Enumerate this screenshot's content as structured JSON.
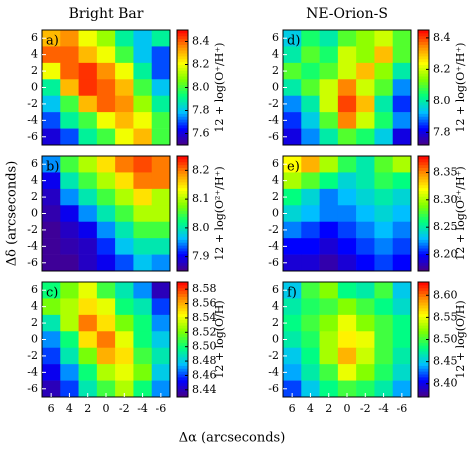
{
  "chart_data": [
    {
      "type": "heatmap",
      "panel_label": "a)",
      "title": "Bright Bar",
      "colorbar_label": "12 + log(O⁺/H⁺)",
      "xlim": [
        7,
        -7
      ],
      "ylim": [
        -7,
        7
      ],
      "yticks": [
        -6,
        -4,
        -2,
        0,
        2,
        4,
        6
      ],
      "clim": [
        7.5,
        8.5
      ],
      "cticks": [
        7.6,
        7.8,
        {
          "value": 8,
          "label": "8.0"
        },
        8.2,
        8.4
      ],
      "colormap": [
        "#4b0082",
        "#0000ff",
        "#00bfff",
        "#00ff7f",
        "#7fff00",
        "#ffff00",
        "#ff8c00",
        "#ff0000"
      ],
      "values": [
        [
          8.3,
          8.35,
          8.2,
          8.1,
          7.9,
          7.8,
          7.9
        ],
        [
          8.4,
          8.4,
          8.3,
          8.2,
          8.0,
          7.8,
          7.7
        ],
        [
          8.2,
          8.4,
          8.45,
          8.35,
          8.2,
          7.9,
          7.7
        ],
        [
          7.9,
          8.3,
          8.45,
          8.4,
          8.3,
          8.0,
          7.8
        ],
        [
          7.8,
          8.0,
          8.3,
          8.4,
          8.35,
          8.1,
          7.9
        ],
        [
          7.7,
          7.9,
          8.0,
          8.2,
          8.3,
          8.2,
          8.0
        ],
        [
          7.6,
          7.7,
          7.9,
          8.0,
          8.2,
          8.3,
          8.0
        ]
      ]
    },
    {
      "type": "heatmap",
      "panel_label": "b)",
      "ylabel": "Δδ (arcseconds)",
      "colorbar_label": "12 + log(O²⁺/H⁺)",
      "xlim": [
        7,
        -7
      ],
      "ylim": [
        -7,
        7
      ],
      "yticks": [
        -6,
        -4,
        -2,
        0,
        2,
        4,
        6
      ],
      "clim": [
        7.85,
        8.25
      ],
      "cticks": [
        7.9,
        {
          "value": 8,
          "label": "8.0"
        },
        8.1,
        8.2
      ],
      "colormap": [
        "#4b0082",
        "#0000ff",
        "#00bfff",
        "#00ff7f",
        "#7fff00",
        "#ffff00",
        "#ff8c00",
        "#ff0000"
      ],
      "values": [
        [
          7.95,
          8.05,
          8.1,
          8.15,
          8.2,
          8.22,
          8.2
        ],
        [
          7.9,
          8.0,
          8.05,
          8.1,
          8.15,
          8.2,
          8.2
        ],
        [
          7.88,
          7.95,
          8.0,
          8.05,
          8.1,
          8.15,
          8.1
        ],
        [
          7.87,
          7.9,
          7.95,
          8.0,
          8.05,
          8.1,
          8.1
        ],
        [
          7.86,
          7.88,
          7.9,
          7.95,
          8.0,
          8.05,
          8.05
        ],
        [
          7.86,
          7.87,
          7.88,
          7.92,
          7.97,
          8.0,
          8.0
        ],
        [
          7.86,
          7.86,
          7.88,
          7.9,
          7.93,
          7.97,
          7.95
        ]
      ]
    },
    {
      "type": "heatmap",
      "panel_label": "c)",
      "xlabel": "Δα (arcseconds)",
      "colorbar_label": "12 + log(O/H)",
      "xlim": [
        7,
        -7
      ],
      "ylim": [
        -7,
        7
      ],
      "xticks": [
        6,
        4,
        2,
        0,
        -2,
        -4,
        -6
      ],
      "yticks": [
        -6,
        -4,
        -2,
        0,
        2,
        4,
        6
      ],
      "clim": [
        8.43,
        8.59
      ],
      "cticks": [
        8.44,
        8.46,
        8.48,
        {
          "value": 8.5,
          "label": "8.50"
        },
        8.52,
        8.54,
        8.56,
        8.58
      ],
      "colormap": [
        "#4b0082",
        "#0000ff",
        "#00bfff",
        "#00ff7f",
        "#7fff00",
        "#ffff00",
        "#ff8c00",
        "#ff0000"
      ],
      "values": [
        [
          8.5,
          8.52,
          8.54,
          8.51,
          8.49,
          8.47,
          8.44
        ],
        [
          8.52,
          8.53,
          8.55,
          8.54,
          8.5,
          8.49,
          8.46
        ],
        [
          8.49,
          8.53,
          8.57,
          8.55,
          8.52,
          8.5,
          8.47
        ],
        [
          8.47,
          8.5,
          8.55,
          8.57,
          8.54,
          8.5,
          8.48
        ],
        [
          8.46,
          8.49,
          8.52,
          8.56,
          8.55,
          8.51,
          8.49
        ],
        [
          8.45,
          8.47,
          8.5,
          8.53,
          8.54,
          8.52,
          8.48
        ],
        [
          8.44,
          8.46,
          8.49,
          8.51,
          8.53,
          8.5,
          8.47
        ]
      ]
    },
    {
      "type": "heatmap",
      "panel_label": "d)",
      "title": "NE-Orion-S",
      "colorbar_label": "12 + log(O⁺/H⁺)",
      "xlim": [
        7,
        -7
      ],
      "ylim": [
        -7,
        7
      ],
      "yticks": [
        -6,
        -4,
        -2,
        0,
        2,
        4,
        6
      ],
      "clim": [
        7.72,
        8.45
      ],
      "cticks": [
        7.8,
        {
          "value": 8,
          "label": "8.0"
        },
        8.2,
        8.4
      ],
      "colormap": [
        "#4b0082",
        "#0000ff",
        "#00bfff",
        "#00ff7f",
        "#7fff00",
        "#ffff00",
        "#ff8c00",
        "#ff0000"
      ],
      "values": [
        [
          7.95,
          8.05,
          8.0,
          8.1,
          8.15,
          8.2,
          8.1
        ],
        [
          8.0,
          8.1,
          8.05,
          8.2,
          8.15,
          8.3,
          8.1
        ],
        [
          8.1,
          8.05,
          8.1,
          8.2,
          8.3,
          8.15,
          8.0
        ],
        [
          8.0,
          8.1,
          8.2,
          8.35,
          8.2,
          8.1,
          7.9
        ],
        [
          7.9,
          8.0,
          8.2,
          8.4,
          8.3,
          8.0,
          7.85
        ],
        [
          7.85,
          7.95,
          8.1,
          8.35,
          8.2,
          8.05,
          7.9
        ],
        [
          7.8,
          7.9,
          8.0,
          8.1,
          8.05,
          7.95,
          7.8
        ]
      ]
    },
    {
      "type": "heatmap",
      "panel_label": "e)",
      "colorbar_label": "12 + log(O²⁺/H⁺)",
      "xlim": [
        7,
        -7
      ],
      "ylim": [
        -7,
        7
      ],
      "yticks": [
        -6,
        -4,
        -2,
        0,
        2,
        4,
        6
      ],
      "clim": [
        8.17,
        8.38
      ],
      "cticks": [
        {
          "value": 8.2,
          "label": "8.20"
        },
        8.25,
        {
          "value": 8.3,
          "label": "8.30"
        },
        8.35
      ],
      "colormap": [
        "#4b0082",
        "#0000ff",
        "#00bfff",
        "#00ff7f",
        "#7fff00",
        "#ffff00",
        "#ff8c00",
        "#ff0000"
      ],
      "values": [
        [
          8.32,
          8.34,
          8.3,
          8.27,
          8.25,
          8.28,
          8.3
        ],
        [
          8.3,
          8.28,
          8.26,
          8.24,
          8.25,
          8.27,
          8.26
        ],
        [
          8.26,
          8.24,
          8.22,
          8.23,
          8.24,
          8.25,
          8.24
        ],
        [
          8.24,
          8.23,
          8.22,
          8.22,
          8.23,
          8.24,
          8.23
        ],
        [
          8.22,
          8.21,
          8.2,
          8.21,
          8.22,
          8.23,
          8.22
        ],
        [
          8.2,
          8.2,
          8.19,
          8.2,
          8.21,
          8.22,
          8.21
        ],
        [
          8.19,
          8.19,
          8.18,
          8.19,
          8.2,
          8.21,
          8.2
        ]
      ]
    },
    {
      "type": "heatmap",
      "panel_label": "f)",
      "colorbar_label": "12 + log(O/H)",
      "xlim": [
        7,
        -7
      ],
      "ylim": [
        -7,
        7
      ],
      "xticks": [
        6,
        4,
        2,
        0,
        -2,
        -4,
        -6
      ],
      "yticks": [
        -6,
        -4,
        -2,
        0,
        2,
        4,
        6
      ],
      "clim": [
        8.37,
        8.63
      ],
      "cticks": [
        {
          "value": 8.4,
          "label": "8.40"
        },
        8.45,
        {
          "value": 8.5,
          "label": "8.50"
        },
        8.55,
        {
          "value": 8.6,
          "label": "8.60"
        }
      ],
      "colormap": [
        "#4b0082",
        "#0000ff",
        "#00bfff",
        "#00ff7f",
        "#7fff00",
        "#ffff00",
        "#ff8c00",
        "#ff0000"
      ],
      "values": [
        [
          8.45,
          8.5,
          8.52,
          8.48,
          8.47,
          8.5,
          8.45
        ],
        [
          8.47,
          8.49,
          8.5,
          8.52,
          8.5,
          8.48,
          8.46
        ],
        [
          8.48,
          8.5,
          8.52,
          8.55,
          8.52,
          8.5,
          8.48
        ],
        [
          8.47,
          8.49,
          8.53,
          8.56,
          8.55,
          8.5,
          8.48
        ],
        [
          8.45,
          8.48,
          8.53,
          8.58,
          8.54,
          8.5,
          8.47
        ],
        [
          8.44,
          8.47,
          8.5,
          8.55,
          8.52,
          8.49,
          8.46
        ],
        [
          8.42,
          8.45,
          8.48,
          8.5,
          8.49,
          8.47,
          8.44
        ]
      ]
    }
  ]
}
